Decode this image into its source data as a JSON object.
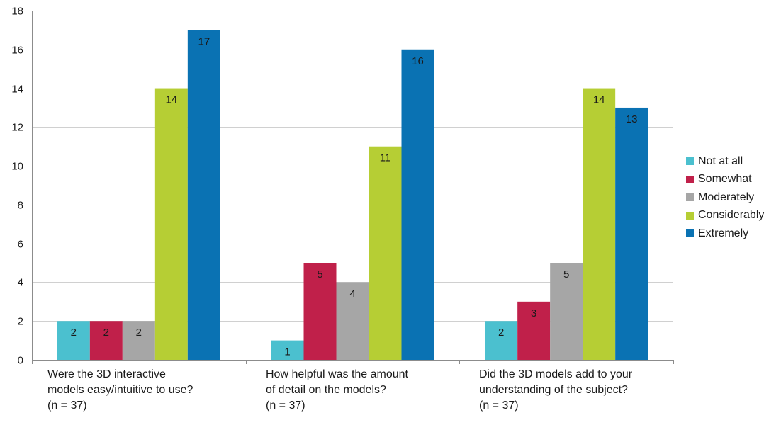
{
  "chart_data": {
    "type": "bar",
    "categories": [
      [
        "Were the 3D interactive",
        "models easy/intuitive to use?",
        "(n = 37)"
      ],
      [
        "How helpful was the amount",
        "of detail on the models?",
        "(n = 37)"
      ],
      [
        "Did the 3D models add to your",
        "understanding of the subject?",
        "(n = 37)"
      ]
    ],
    "series": [
      {
        "name": "Not at all",
        "color": "#4bc0cf",
        "values": [
          2,
          1,
          2
        ]
      },
      {
        "name": "Somewhat",
        "color": "#c0204a",
        "values": [
          2,
          5,
          3
        ]
      },
      {
        "name": "Moderately",
        "color": "#a6a6a6",
        "values": [
          2,
          4,
          5
        ]
      },
      {
        "name": "Considerably",
        "color": "#b6ce34",
        "values": [
          14,
          11,
          14
        ]
      },
      {
        "name": "Extremely",
        "color": "#0a72b3",
        "values": [
          17,
          16,
          13
        ]
      }
    ],
    "ylim": [
      0,
      18
    ],
    "yticks": [
      0,
      2,
      4,
      6,
      8,
      10,
      12,
      14,
      16,
      18
    ],
    "grid": true,
    "legend_position": "right",
    "data_labels": true
  }
}
